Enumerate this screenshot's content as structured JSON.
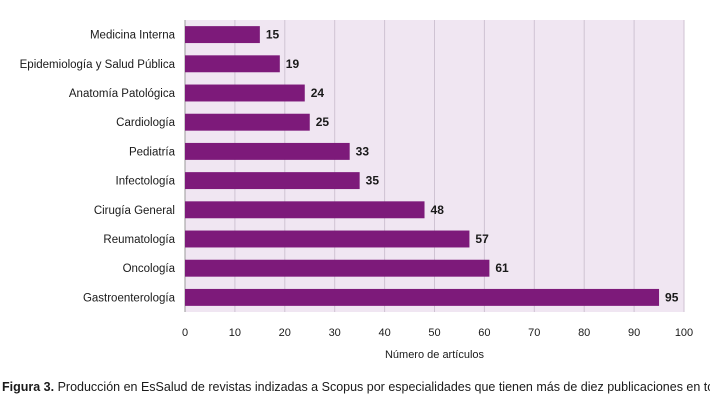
{
  "chart_data": {
    "type": "bar",
    "orientation": "horizontal",
    "categories": [
      "Medicina Interna",
      "Epidemiología y Salud Pública",
      "Anatomía Patológica",
      "Cardiología",
      "Pediatría",
      "Infectología",
      "Cirugía General",
      "Reumatología",
      "Oncología",
      "Gastroenterología"
    ],
    "values": [
      15,
      19,
      24,
      25,
      33,
      35,
      48,
      57,
      61,
      95
    ],
    "xlabel": "Número de artículos",
    "xlim": [
      0,
      100
    ],
    "xticks": [
      0,
      10,
      20,
      30,
      40,
      50,
      60,
      70,
      80,
      90,
      100
    ],
    "grid": true,
    "bar_color": "#7d1a7a",
    "plot_background": "#f0e6f2",
    "data_labels": true
  },
  "caption": {
    "label": "Figura 3.",
    "text": " Producción en EsSalud de revistas indizadas a Scopus por especialidades que tienen más de diez publicaciones en total."
  }
}
